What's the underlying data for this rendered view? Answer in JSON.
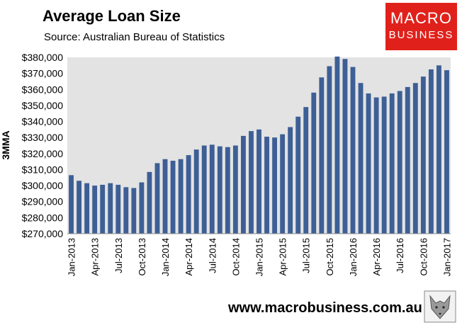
{
  "header": {
    "title": "Average Loan Size",
    "subtitle": "Source: Australian Bureau of Statistics"
  },
  "logo": {
    "line1": "MACRO",
    "line2": "BUSINESS"
  },
  "footer": {
    "url": "www.macrobusiness.com.au"
  },
  "mascot": {
    "icon": "wolf-logo-icon"
  },
  "colors": {
    "bar": "#3d5f96",
    "plot_bg": "#e3e3e3",
    "logo_bg": "#e0211b"
  },
  "chart_data": {
    "type": "bar",
    "ylabel": "3MMA",
    "ylim": [
      270000,
      380000
    ],
    "y_ticks": [
      "$270,000",
      "$280,000",
      "$290,000",
      "$300,000",
      "$310,000",
      "$320,000",
      "$330,000",
      "$340,000",
      "$350,000",
      "$360,000",
      "$370,000",
      "$380,000"
    ],
    "x_tick_labels": [
      "Jan-2013",
      "Apr-2013",
      "Jul-2013",
      "Oct-2013",
      "Jan-2014",
      "Apr-2014",
      "Jul-2014",
      "Oct-2014",
      "Jan-2015",
      "Apr-2015",
      "Jul-2015",
      "Oct-2015",
      "Jan-2016",
      "Apr-2016",
      "Jul-2016",
      "Oct-2016",
      "Jan-2017"
    ],
    "grid": false,
    "categories": [
      "Jan-2013",
      "Feb-2013",
      "Mar-2013",
      "Apr-2013",
      "May-2013",
      "Jun-2013",
      "Jul-2013",
      "Aug-2013",
      "Sep-2013",
      "Oct-2013",
      "Nov-2013",
      "Dec-2013",
      "Jan-2014",
      "Feb-2014",
      "Mar-2014",
      "Apr-2014",
      "May-2014",
      "Jun-2014",
      "Jul-2014",
      "Aug-2014",
      "Sep-2014",
      "Oct-2014",
      "Nov-2014",
      "Dec-2014",
      "Jan-2015",
      "Feb-2015",
      "Mar-2015",
      "Apr-2015",
      "May-2015",
      "Jun-2015",
      "Jul-2015",
      "Aug-2015",
      "Sep-2015",
      "Oct-2015",
      "Nov-2015",
      "Dec-2015",
      "Jan-2016",
      "Feb-2016",
      "Mar-2016",
      "Apr-2016",
      "May-2016",
      "Jun-2016",
      "Jul-2016",
      "Aug-2016",
      "Sep-2016",
      "Oct-2016",
      "Nov-2016",
      "Dec-2016",
      "Jan-2017"
    ],
    "values": [
      306500,
      303000,
      301500,
      300000,
      300500,
      301500,
      300500,
      299000,
      298500,
      302000,
      308500,
      314000,
      316500,
      315500,
      316500,
      319000,
      322500,
      325000,
      325500,
      324500,
      324000,
      325000,
      331000,
      334000,
      335000,
      330500,
      330000,
      332000,
      336500,
      343000,
      349000,
      358000,
      367500,
      374500,
      380500,
      379000,
      374000,
      364000,
      357500,
      355000,
      355500,
      357500,
      359000,
      361500,
      364000,
      368000,
      372500,
      375000,
      372000
    ]
  }
}
